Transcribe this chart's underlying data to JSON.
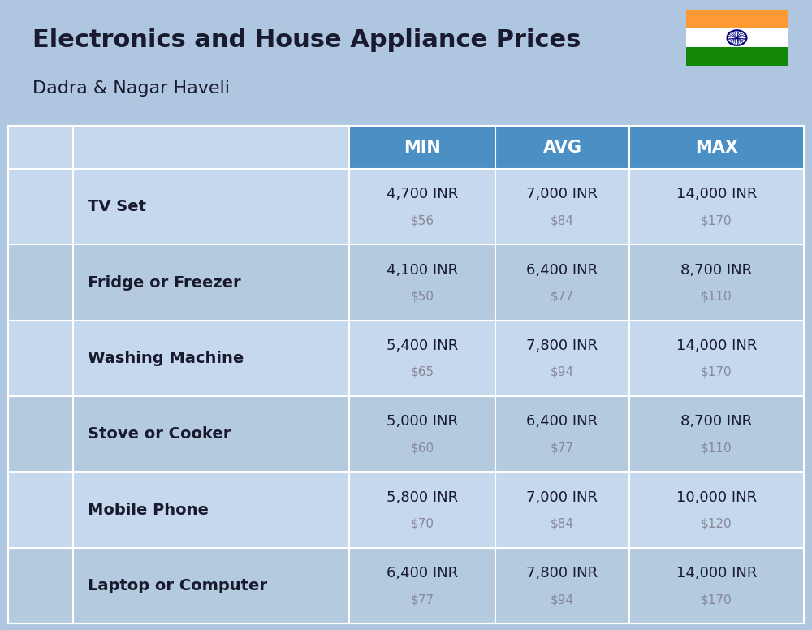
{
  "title": "Electronics and House Appliance Prices",
  "subtitle": "Dadra & Nagar Haveli",
  "background_color": "#aec6df",
  "header_color": "#4a90c4",
  "header_text_color": "#ffffff",
  "row_color_light": "#c5d8ed",
  "row_color_dark": "#b3cadf",
  "columns": [
    "MIN",
    "AVG",
    "MAX"
  ],
  "items": [
    {
      "name": "TV Set",
      "min_inr": "4,700 INR",
      "min_usd": "$56",
      "avg_inr": "7,000 INR",
      "avg_usd": "$84",
      "max_inr": "14,000 INR",
      "max_usd": "$170"
    },
    {
      "name": "Fridge or Freezer",
      "min_inr": "4,100 INR",
      "min_usd": "$50",
      "avg_inr": "6,400 INR",
      "avg_usd": "$77",
      "max_inr": "8,700 INR",
      "max_usd": "$110"
    },
    {
      "name": "Washing Machine",
      "min_inr": "5,400 INR",
      "min_usd": "$65",
      "avg_inr": "7,800 INR",
      "avg_usd": "$94",
      "max_inr": "14,000 INR",
      "max_usd": "$170"
    },
    {
      "name": "Stove or Cooker",
      "min_inr": "5,000 INR",
      "min_usd": "$60",
      "avg_inr": "6,400 INR",
      "avg_usd": "$77",
      "max_inr": "8,700 INR",
      "max_usd": "$110"
    },
    {
      "name": "Mobile Phone",
      "min_inr": "5,800 INR",
      "min_usd": "$70",
      "avg_inr": "7,000 INR",
      "avg_usd": "$84",
      "max_inr": "10,000 INR",
      "max_usd": "$120"
    },
    {
      "name": "Laptop or Computer",
      "min_inr": "6,400 INR",
      "min_usd": "$77",
      "avg_inr": "7,800 INR",
      "avg_usd": "$94",
      "max_inr": "14,000 INR",
      "max_usd": "$170"
    }
  ],
  "title_fontsize": 22,
  "subtitle_fontsize": 16,
  "header_fontsize": 15,
  "name_fontsize": 14,
  "value_fontsize": 13,
  "usd_fontsize": 11,
  "text_color": "#1a1a2e",
  "usd_color": "#888899"
}
